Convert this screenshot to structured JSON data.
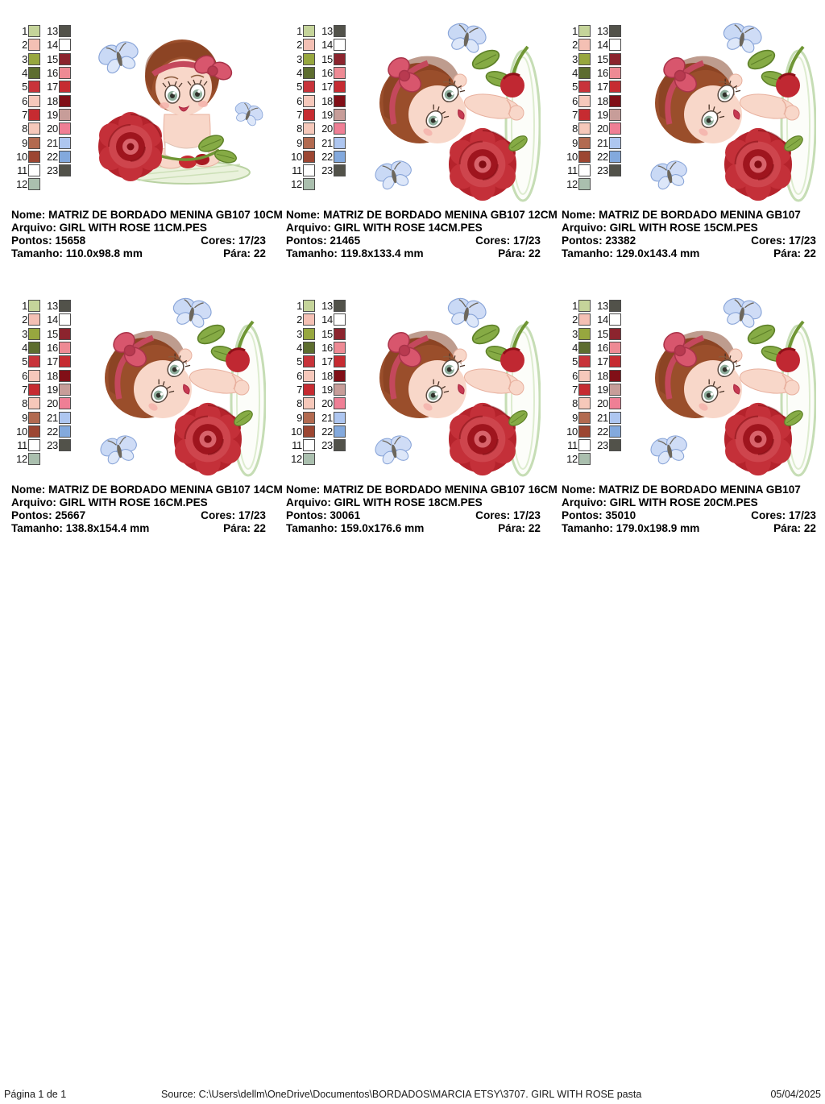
{
  "labels": {
    "nome": "Nome:",
    "arquivo": "Arquivo:",
    "pontos": "Pontos:",
    "cores": "Cores:",
    "tamanho": "Tamanho:",
    "para": "Pára:"
  },
  "palette": [
    {
      "num": 1,
      "color": "#c5d49a"
    },
    {
      "num": 2,
      "color": "#f4c0b4"
    },
    {
      "num": 3,
      "color": "#97a73f"
    },
    {
      "num": 4,
      "color": "#5d6d2f"
    },
    {
      "num": 5,
      "color": "#c8333a"
    },
    {
      "num": 6,
      "color": "#f6c8bb"
    },
    {
      "num": 7,
      "color": "#c62b31"
    },
    {
      "num": 8,
      "color": "#f6c8ba"
    },
    {
      "num": 9,
      "color": "#b26a50"
    },
    {
      "num": 10,
      "color": "#9c4632"
    },
    {
      "num": 11,
      "color": "#ffffff"
    },
    {
      "num": 12,
      "color": "#aabfae"
    },
    {
      "num": 13,
      "color": "#52524a"
    },
    {
      "num": 14,
      "color": "#ffffff"
    },
    {
      "num": 15,
      "color": "#8c242e"
    },
    {
      "num": 16,
      "color": "#ee8a94"
    },
    {
      "num": 17,
      "color": "#c62b31"
    },
    {
      "num": 18,
      "color": "#810f17"
    },
    {
      "num": 19,
      "color": "#c79d99"
    },
    {
      "num": 20,
      "color": "#ef7f95"
    },
    {
      "num": 21,
      "color": "#aec6f0"
    },
    {
      "num": 22,
      "color": "#83a9dd"
    },
    {
      "num": 23,
      "color": "#52524a"
    }
  ],
  "cards": [
    {
      "variant": "sitting",
      "nome": "MATRIZ DE BORDADO MENINA GB107 10CM",
      "arquivo": "GIRL WITH ROSE 11CM.PES",
      "pontos": "15658",
      "cores": "17/23",
      "tamanho": "110.0x98.8 mm",
      "para": "22"
    },
    {
      "variant": "peeking",
      "nome": "MATRIZ DE BORDADO MENINA GB107 12CM",
      "arquivo": "GIRL WITH ROSE 14CM.PES",
      "pontos": "21465",
      "cores": "17/23",
      "tamanho": "119.8x133.4 mm",
      "para": "22"
    },
    {
      "variant": "peeking",
      "nome": "MATRIZ DE BORDADO MENINA GB107",
      "arquivo": "GIRL WITH ROSE 15CM.PES",
      "pontos": "23382",
      "cores": "17/23",
      "tamanho": "129.0x143.4 mm",
      "para": "22"
    },
    {
      "variant": "peeking",
      "nome": "MATRIZ DE BORDADO MENINA GB107 14CM",
      "arquivo": "GIRL WITH ROSE 16CM.PES",
      "pontos": "25667",
      "cores": "17/23",
      "tamanho": "138.8x154.4 mm",
      "para": "22"
    },
    {
      "variant": "peeking",
      "nome": "MATRIZ DE BORDADO MENINA GB107 16CM",
      "arquivo": "GIRL WITH ROSE 18CM.PES",
      "pontos": "30061",
      "cores": "17/23",
      "tamanho": "159.0x176.6 mm",
      "para": "22"
    },
    {
      "variant": "peeking",
      "nome": "MATRIZ DE BORDADO MENINA GB107",
      "arquivo": "GIRL WITH ROSE 20CM.PES",
      "pontos": "35010",
      "cores": "17/23",
      "tamanho": "179.0x198.9 mm",
      "para": "22"
    }
  ],
  "footer": {
    "page_number": "Página 1 de 1",
    "source_label": "Source:",
    "source_path": "C:\\Users\\dellm\\OneDrive\\Documentos\\BORDADOS\\MARCIA ETSY\\3707. GIRL WITH ROSE pasta",
    "date": "05/04/2025"
  }
}
